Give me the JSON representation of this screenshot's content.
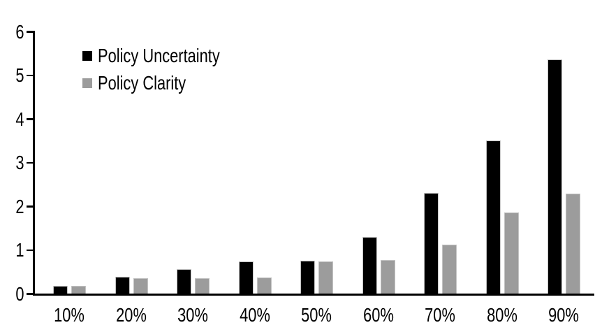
{
  "chart_data": {
    "type": "bar",
    "title": "",
    "xlabel": "",
    "ylabel": "",
    "categories": [
      "10%",
      "20%",
      "30%",
      "40%",
      "50%",
      "60%",
      "70%",
      "80%",
      "90%"
    ],
    "series": [
      {
        "name": "Policy Uncertainty",
        "color": "#000000",
        "values": [
          0.2,
          0.4,
          0.57,
          0.76,
          0.77,
          1.32,
          2.32,
          3.52,
          5.37
        ]
      },
      {
        "name": "Policy Clarity",
        "color": "#9c9c9c",
        "values": [
          0.2,
          0.37,
          0.37,
          0.38,
          0.76,
          0.79,
          1.14,
          1.88,
          2.3
        ]
      }
    ],
    "ylim": [
      0,
      6
    ],
    "yticks": [
      0,
      1,
      2,
      3,
      4,
      5,
      6
    ],
    "grid": false,
    "legend_position": "top-left-inside",
    "axis_color": "#000000",
    "bar_outline_color": "#c3c3c3",
    "background_color": "#ffffff"
  }
}
